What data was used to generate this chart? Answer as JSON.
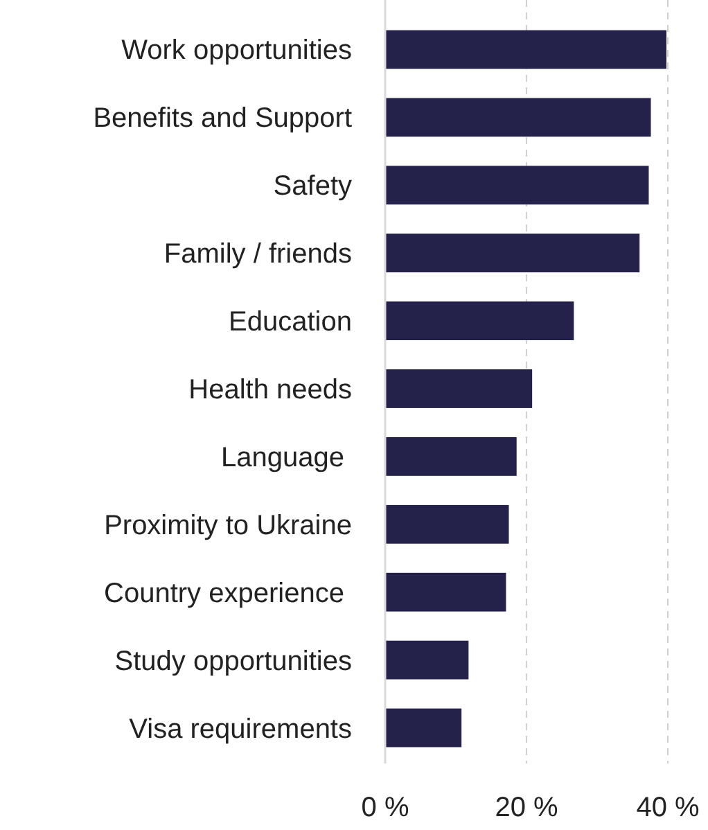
{
  "chart_data": {
    "type": "bar",
    "orientation": "horizontal",
    "categories": [
      "Work opportunities",
      "Benefits and Support",
      "Safety",
      "Family / friends",
      "Education",
      "Health needs",
      "Language ",
      "Proximity to Ukraine",
      "Country experience ",
      "Study opportunities",
      "Visa requirements"
    ],
    "values": [
      39.8,
      37.6,
      37.3,
      36,
      26.7,
      20.8,
      18.6,
      17.5,
      17.1,
      11.8,
      10.8
    ],
    "color": "#24224a",
    "xlim": [
      0,
      40
    ],
    "xticks": [
      {
        "value": 0,
        "label": "0 %"
      },
      {
        "value": 20,
        "label": "20 %"
      },
      {
        "value": 40,
        "label": "40 %"
      }
    ],
    "grid": "x"
  }
}
